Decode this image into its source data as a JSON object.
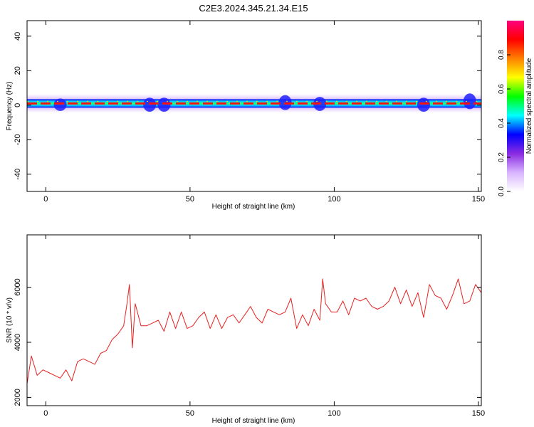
{
  "figure_title": "C2E3.2024.345.21.34.E15",
  "chart_data": [
    {
      "type": "heatmap",
      "title": "C2E3.2024.345.21.34.E15",
      "xlabel": "Height of straight line (km)",
      "ylabel": "Frequency (Hz)",
      "xlim": [
        -6.5,
        151
      ],
      "ylim": [
        -50,
        49
      ],
      "xticks": [
        0,
        50,
        100,
        150
      ],
      "yticks": [
        -40,
        -20,
        0,
        20,
        40
      ],
      "band_center_hz": 1,
      "band_halfwidth_hz": 2.5,
      "band_bursts": [
        {
          "x": 5,
          "max_hz": 3,
          "min_hz": -2.5
        },
        {
          "x": 36,
          "max_hz": 3.5,
          "min_hz": -3
        },
        {
          "x": 41,
          "max_hz": 3.5,
          "min_hz": -3
        },
        {
          "x": 83,
          "max_hz": 5,
          "min_hz": -2
        },
        {
          "x": 95,
          "max_hz": 4,
          "min_hz": -2.5
        },
        {
          "x": 131,
          "max_hz": 3.5,
          "min_hz": -3
        },
        {
          "x": 147,
          "max_hz": 6,
          "min_hz": -1.5
        }
      ],
      "colorbar": {
        "label": "Normalized spectral amplitude",
        "range": [
          0,
          1
        ],
        "ticks": [
          0.0,
          0.2,
          0.4,
          0.6,
          0.8
        ],
        "colors": [
          "#ffffff",
          "#d8b4ff",
          "#8a2be2",
          "#0000ff",
          "#00ffff",
          "#00ff00",
          "#ffff00",
          "#ff8000",
          "#ff0000",
          "#ff0080"
        ]
      }
    },
    {
      "type": "line",
      "xlabel": "Height of straight line (km)",
      "ylabel": "SNR (10 * v/v)",
      "xlim": [
        -6.5,
        151
      ],
      "ylim": [
        1700,
        7900
      ],
      "xticks": [
        0,
        50,
        100,
        150
      ],
      "yticks": [
        2000,
        4000,
        6000
      ],
      "color": "#e82020",
      "x": [
        -6.5,
        -5,
        -3,
        -1,
        1,
        3,
        5,
        7,
        9,
        11,
        13,
        15,
        17,
        19,
        21,
        23,
        25,
        27,
        28,
        29,
        30,
        31,
        33,
        35,
        37,
        39,
        41,
        43,
        45,
        47,
        49,
        51,
        53,
        55,
        57,
        59,
        61,
        63,
        65,
        67,
        69,
        71,
        73,
        75,
        77,
        79,
        81,
        83,
        85,
        87,
        89,
        91,
        93,
        95,
        96,
        97,
        99,
        101,
        103,
        105,
        107,
        109,
        111,
        113,
        115,
        117,
        119,
        121,
        123,
        125,
        127,
        129,
        131,
        133,
        135,
        137,
        139,
        141,
        143,
        145,
        147,
        149,
        151
      ],
      "y": [
        2500,
        3500,
        2800,
        3000,
        2900,
        2800,
        2700,
        3000,
        2600,
        3300,
        3400,
        3300,
        3200,
        3600,
        3700,
        4100,
        4300,
        4600,
        5300,
        6100,
        3800,
        5400,
        4600,
        4600,
        4700,
        4800,
        4400,
        5100,
        4500,
        5100,
        4500,
        4600,
        4900,
        5100,
        4500,
        5000,
        4500,
        4900,
        5000,
        4700,
        5000,
        5300,
        4900,
        4700,
        5200,
        5100,
        5000,
        5100,
        5600,
        4500,
        5000,
        4600,
        5200,
        4800,
        6300,
        5400,
        5100,
        5100,
        5500,
        5000,
        5600,
        5500,
        5600,
        5300,
        5200,
        5300,
        5500,
        6000,
        5400,
        5900,
        5300,
        5800,
        4900,
        6100,
        5700,
        5600,
        5200,
        5700,
        6300,
        5400,
        5500,
        6100,
        5800
      ]
    }
  ]
}
